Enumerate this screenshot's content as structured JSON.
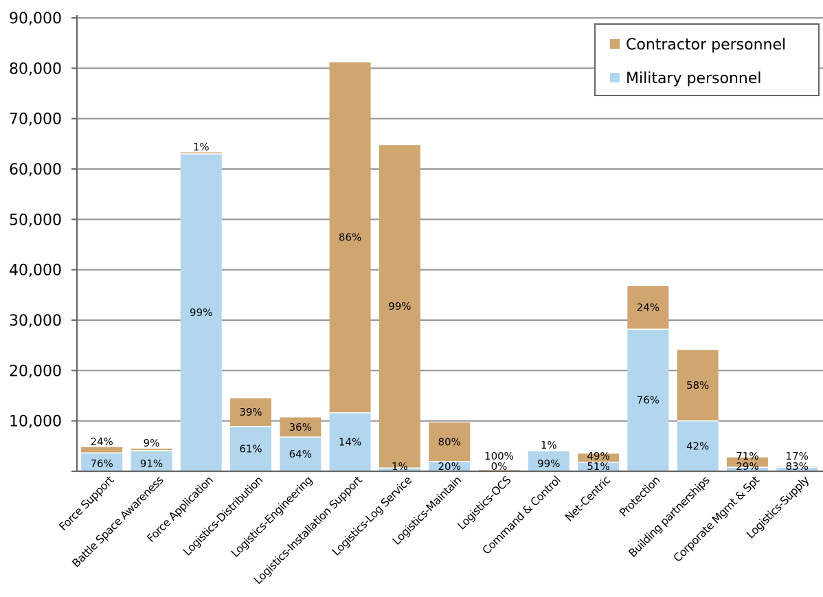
{
  "chart_data": {
    "type": "bar",
    "stacked": true,
    "title": "",
    "xlabel": "",
    "ylabel": "",
    "ylim": [
      0,
      90000
    ],
    "yticks": [
      10000,
      20000,
      30000,
      40000,
      50000,
      60000,
      70000,
      80000,
      90000
    ],
    "ytick_labels": [
      "10,000",
      "20,000",
      "30,000",
      "40,000",
      "50,000",
      "60,000",
      "70,000",
      "80,000",
      "90,000"
    ],
    "grid": true,
    "legend_position": "top-right",
    "categories": [
      "Force Support",
      "Battle Space Awareness",
      "Force Application",
      "Logistics-Distribution",
      "Logistics-Engineering",
      "Logistics-Installation Support",
      "Logistics-Log Service",
      "Logistics-Maintain",
      "Logistics-OCS",
      "Command & Control",
      "Net-Centric",
      "Protection",
      "Building partnerships",
      "Corporate Mgmt & Spt",
      "Logistics-Supply"
    ],
    "series": [
      {
        "name": "Military personnel",
        "color": "#b3d6ef",
        "values": [
          3650,
          4100,
          63000,
          8900,
          6800,
          11600,
          650,
          1950,
          0,
          4050,
          1800,
          28200,
          10000,
          800,
          800
        ],
        "labels": [
          "76%",
          "91%",
          "99%",
          "61%",
          "64%",
          "14%",
          "1%",
          "20%",
          "0%",
          "99%",
          "51%",
          "76%",
          "42%",
          "29%",
          "83%"
        ]
      },
      {
        "name": "Contractor personnel",
        "color": "#cfa670",
        "values": [
          1150,
          400,
          300,
          5600,
          3900,
          69600,
          64100,
          7750,
          250,
          50,
          1700,
          8600,
          14100,
          1950,
          150
        ],
        "labels": [
          "24%",
          "9%",
          "1%",
          "39%",
          "36%",
          "86%",
          "99%",
          "80%",
          "100%",
          "1%",
          "49%",
          "24%",
          "58%",
          "71%",
          "17%"
        ]
      }
    ]
  },
  "colors": {
    "grid": "#999999",
    "axis": "#666666",
    "legend_border": "#666666"
  }
}
